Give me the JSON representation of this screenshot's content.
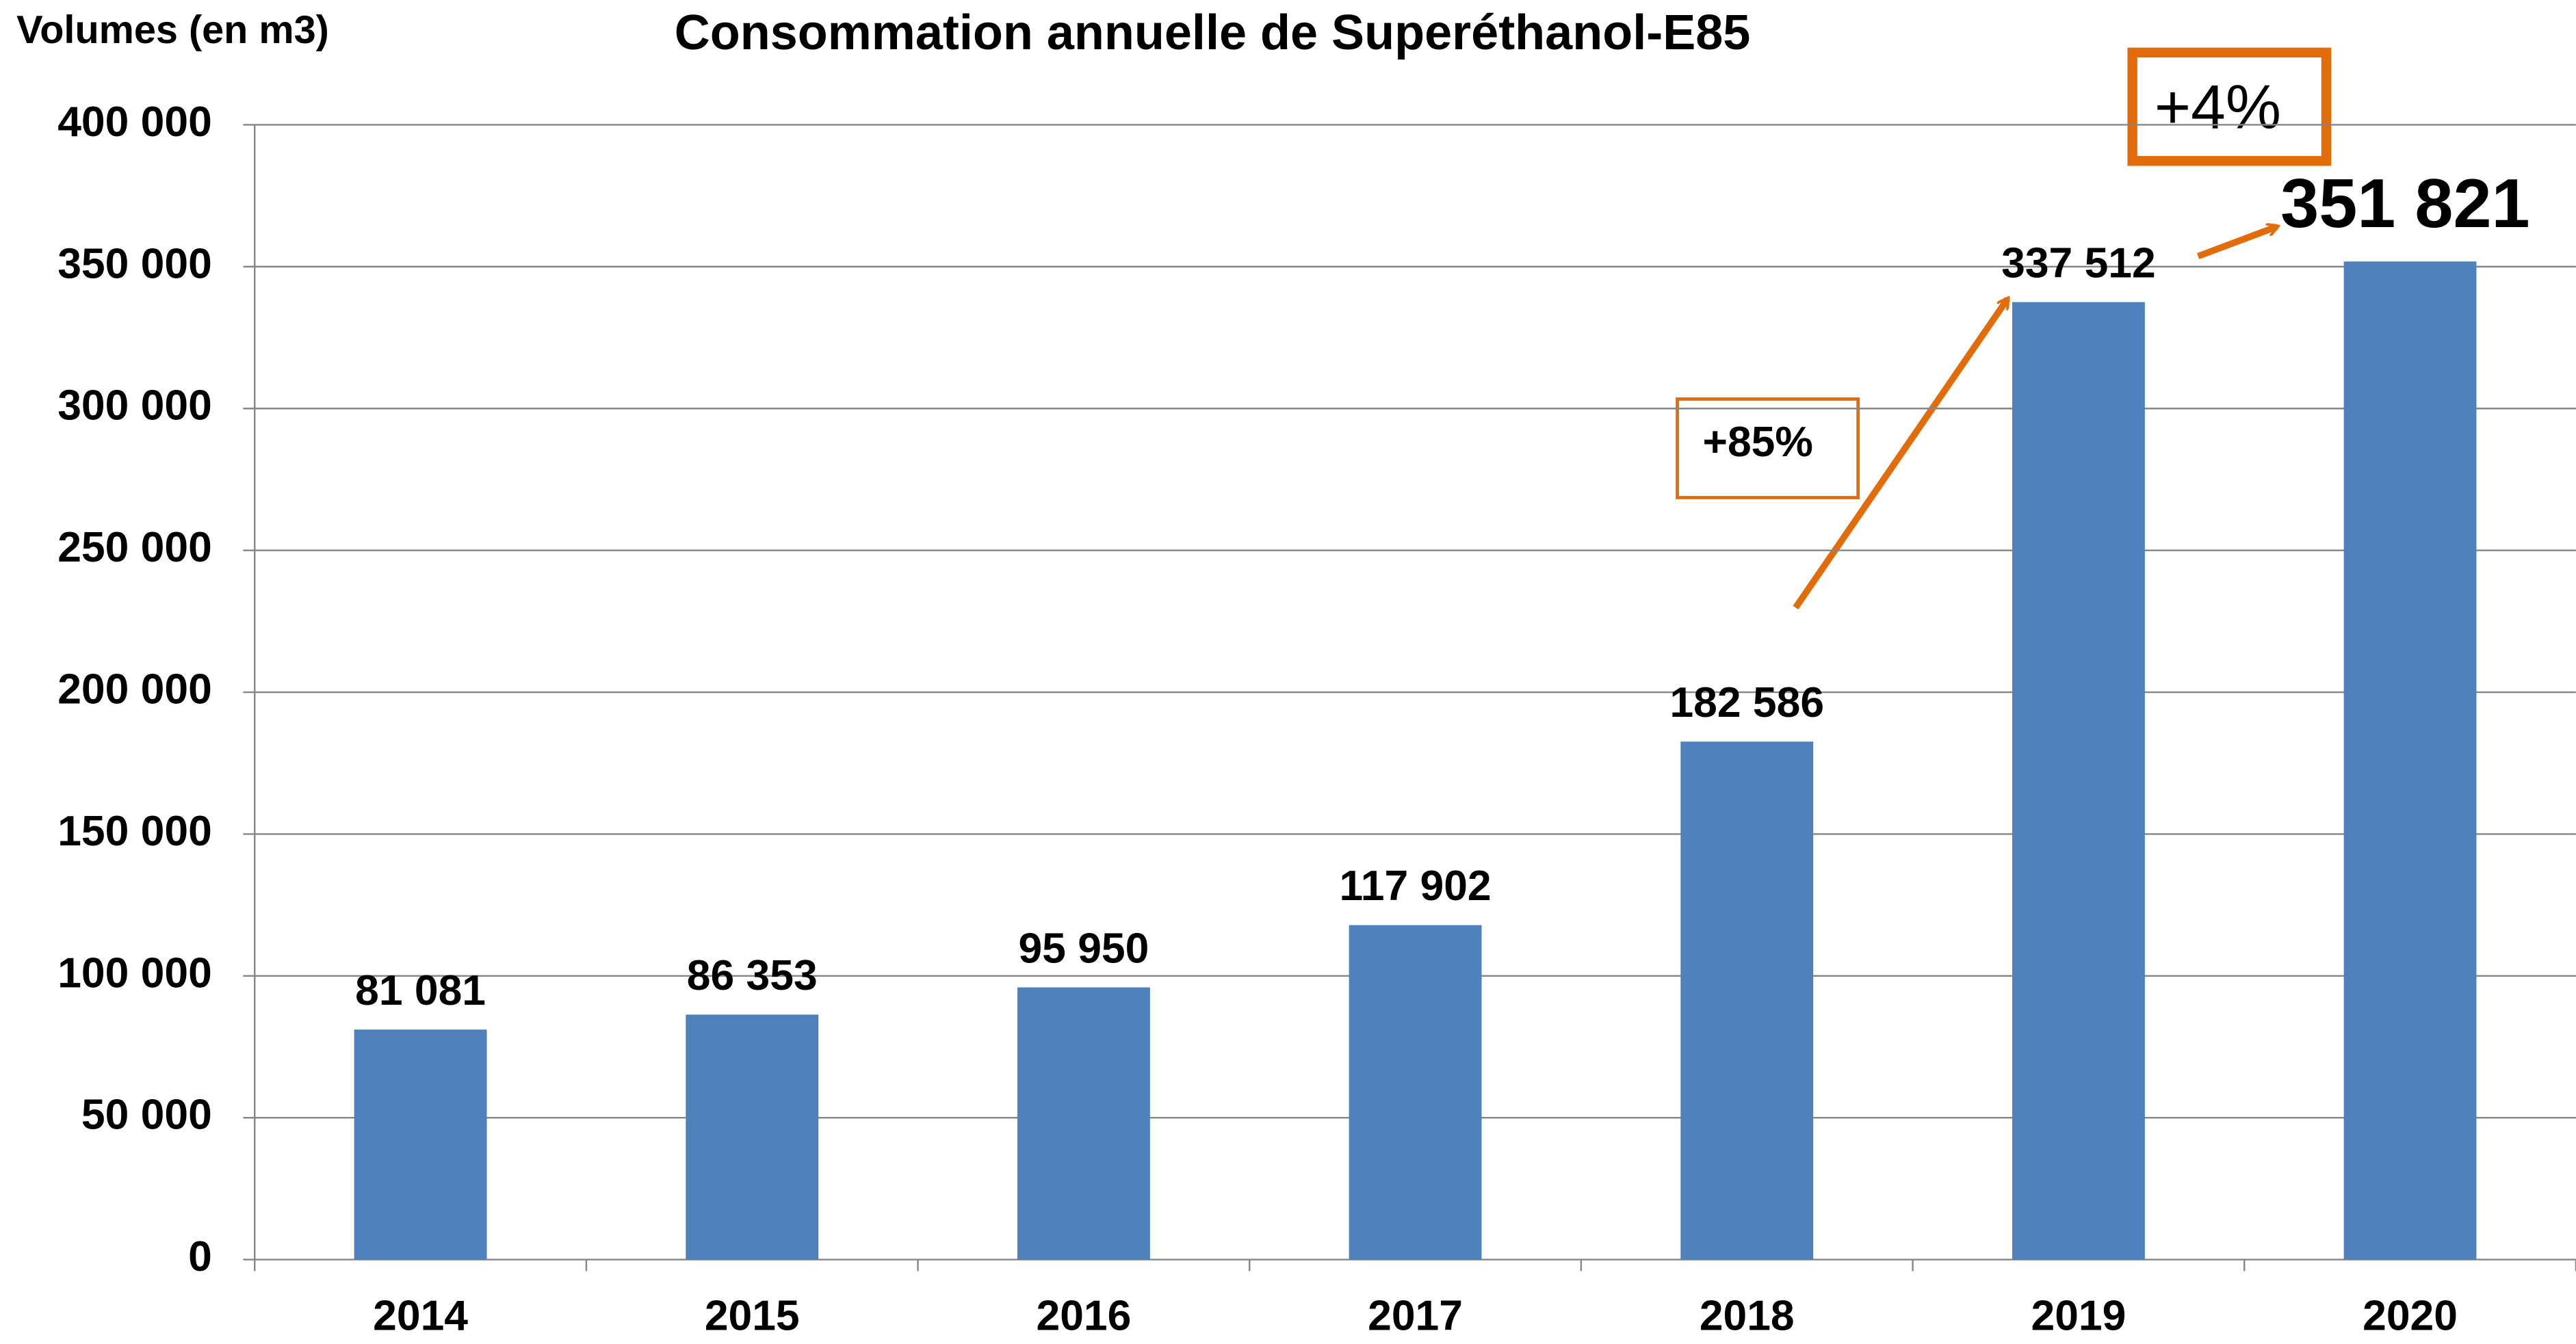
{
  "chart_data": {
    "type": "bar",
    "title": "Consommation annuelle de Superéthanol-E85",
    "y_axis_label": "Volumes (en m3)",
    "categories": [
      "2014",
      "2015",
      "2016",
      "2017",
      "2018",
      "2019",
      "2020"
    ],
    "values": [
      81081,
      86353,
      95950,
      117902,
      182586,
      337512,
      351821
    ],
    "value_labels": [
      "81 081",
      "86 353",
      "95 950",
      "117 902",
      "182 586",
      "337 512",
      "351 821"
    ],
    "color": "#4f81bd",
    "ylim": [
      0,
      400000
    ],
    "yticks": [
      0,
      {
        "value": 50000,
        "label": "50 000"
      },
      {
        "value": 100000,
        "label": "100 000"
      },
      {
        "value": 150000,
        "label": "150 000"
      },
      {
        "value": 200000,
        "label": "200 000"
      },
      {
        "value": 250000,
        "label": "250 000"
      },
      {
        "value": 300000,
        "label": "300 000"
      },
      {
        "value": 350000,
        "label": "350 000"
      },
      {
        "value": 400000,
        "label": "400 000"
      }
    ],
    "grid": true,
    "annotations": [
      "+85%",
      "+4%"
    ]
  }
}
